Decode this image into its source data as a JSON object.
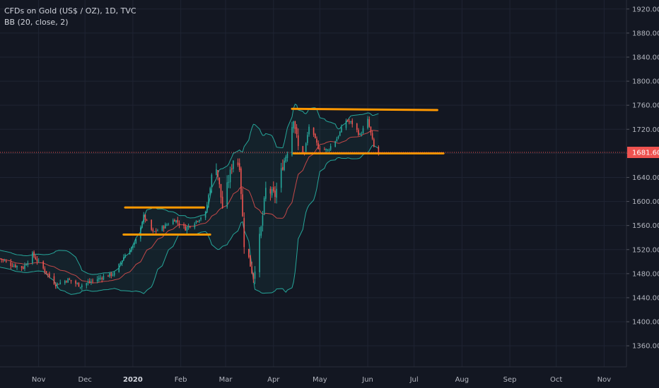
{
  "chart_data": {
    "type": "candlestick",
    "title": "CFDs on Gold (US$ / OZ), 1D, TVC",
    "indicator": "BB (20, close, 2)",
    "yaxis": {
      "ticks": [
        1360,
        1400,
        1440,
        1480,
        1520,
        1560,
        1600,
        1640,
        1680,
        1720,
        1760,
        1800,
        1840,
        1880,
        1920
      ],
      "tick_labels": [
        "1360.00",
        "1400.00",
        "1440.00",
        "1480.00",
        "1520.00",
        "1560.00",
        "1600.00",
        "1640.00",
        "1680.00",
        "1720.00",
        "1760.00",
        "1800.00",
        "1840.00",
        "1880.00",
        "1920.00"
      ],
      "range": [
        1325,
        1935
      ],
      "position": "right"
    },
    "xaxis": {
      "range": [
        "2019-10-07",
        "2020-11-15"
      ],
      "ticks": [
        {
          "date": "2019-11-01",
          "label": "Nov",
          "bold": false
        },
        {
          "date": "2019-12-01",
          "label": "Dec",
          "bold": false
        },
        {
          "date": "2020-01-01",
          "label": "2020",
          "bold": true
        },
        {
          "date": "2020-02-01",
          "label": "Feb",
          "bold": false
        },
        {
          "date": "2020-03-01",
          "label": "Mar",
          "bold": false
        },
        {
          "date": "2020-04-01",
          "label": "Apr",
          "bold": false
        },
        {
          "date": "2020-05-01",
          "label": "May",
          "bold": false
        },
        {
          "date": "2020-06-01",
          "label": "Jun",
          "bold": false
        },
        {
          "date": "2020-07-01",
          "label": "Jul",
          "bold": false
        },
        {
          "date": "2020-08-01",
          "label": "Aug",
          "bold": false
        },
        {
          "date": "2020-09-01",
          "label": "Sep",
          "bold": false
        },
        {
          "date": "2020-10-01",
          "label": "Oct",
          "bold": false
        },
        {
          "date": "2020-11-01",
          "label": "Nov",
          "bold": false
        }
      ]
    },
    "last_price": 1681.6,
    "last_price_label": "1681.60",
    "grid": true,
    "colors": {
      "background": "#131722",
      "up": "#26a69a",
      "down": "#ef5350",
      "bands": "#26a69a",
      "basis": "#ef5350",
      "trendline": "#ff9800",
      "grid": "#1f2433"
    },
    "trendlines": [
      {
        "from": {
          "date": "2019-12-27",
          "price": 1590
        },
        "to": {
          "date": "2020-02-16",
          "price": 1590
        }
      },
      {
        "from": {
          "date": "2019-12-26",
          "price": 1545
        },
        "to": {
          "date": "2020-02-20",
          "price": 1545
        }
      },
      {
        "from": {
          "date": "2020-04-13",
          "price": 1754
        },
        "to": {
          "date": "2020-07-16",
          "price": 1752
        }
      },
      {
        "from": {
          "date": "2020-04-14",
          "price": 1680
        },
        "to": {
          "date": "2020-07-20",
          "price": 1680
        }
      }
    ],
    "close_anchors": [
      [
        "2019-10-07",
        1505
      ],
      [
        "2019-10-14",
        1495
      ],
      [
        "2019-10-22",
        1490
      ],
      [
        "2019-10-28",
        1512
      ],
      [
        "2019-11-05",
        1485
      ],
      [
        "2019-11-12",
        1462
      ],
      [
        "2019-11-20",
        1470
      ],
      [
        "2019-11-28",
        1460
      ],
      [
        "2019-12-06",
        1468
      ],
      [
        "2019-12-13",
        1475
      ],
      [
        "2019-12-20",
        1480
      ],
      [
        "2019-12-27",
        1512
      ],
      [
        "2020-01-02",
        1528
      ],
      [
        "2020-01-08",
        1575
      ],
      [
        "2020-01-14",
        1548
      ],
      [
        "2020-01-21",
        1558
      ],
      [
        "2020-01-28",
        1570
      ],
      [
        "2020-02-04",
        1555
      ],
      [
        "2020-02-11",
        1568
      ],
      [
        "2020-02-17",
        1580
      ],
      [
        "2020-02-21",
        1640
      ],
      [
        "2020-02-24",
        1660
      ],
      [
        "2020-02-28",
        1590
      ],
      [
        "2020-03-06",
        1670
      ],
      [
        "2020-03-10",
        1660
      ],
      [
        "2020-03-13",
        1530
      ],
      [
        "2020-03-16",
        1505
      ],
      [
        "2020-03-19",
        1475
      ],
      [
        "2020-03-24",
        1555
      ],
      [
        "2020-03-27",
        1620
      ],
      [
        "2020-04-02",
        1610
      ],
      [
        "2020-04-07",
        1660
      ],
      [
        "2020-04-10",
        1685
      ],
      [
        "2020-04-14",
        1740
      ],
      [
        "2020-04-17",
        1690
      ],
      [
        "2020-04-21",
        1680
      ],
      [
        "2020-04-24",
        1725
      ],
      [
        "2020-04-30",
        1690
      ],
      [
        "2020-05-06",
        1685
      ],
      [
        "2020-05-12",
        1705
      ],
      [
        "2020-05-18",
        1735
      ],
      [
        "2020-05-22",
        1730
      ],
      [
        "2020-05-27",
        1710
      ],
      [
        "2020-06-01",
        1735
      ],
      [
        "2020-06-05",
        1690
      ],
      [
        "2020-06-08",
        1682
      ]
    ]
  }
}
